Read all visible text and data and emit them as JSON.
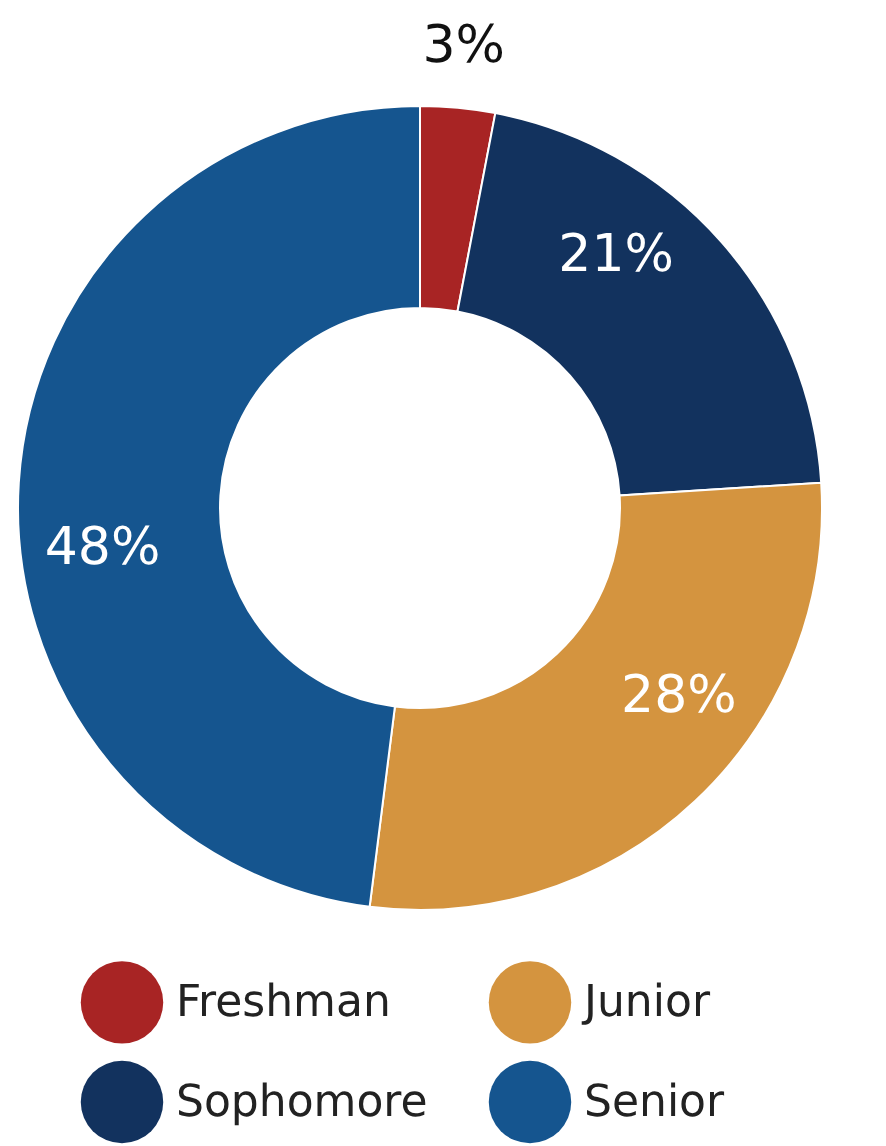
{
  "chart_data": {
    "type": "donut",
    "categories": [
      "Freshman",
      "Sophomore",
      "Junior",
      "Senior"
    ],
    "values": [
      3,
      21,
      28,
      48
    ],
    "colors": [
      "#a82424",
      "#12325e",
      "#d4943f",
      "#15558f"
    ],
    "value_labels": [
      "3%",
      "21%",
      "28%",
      "48%"
    ],
    "legend": "bottom"
  }
}
